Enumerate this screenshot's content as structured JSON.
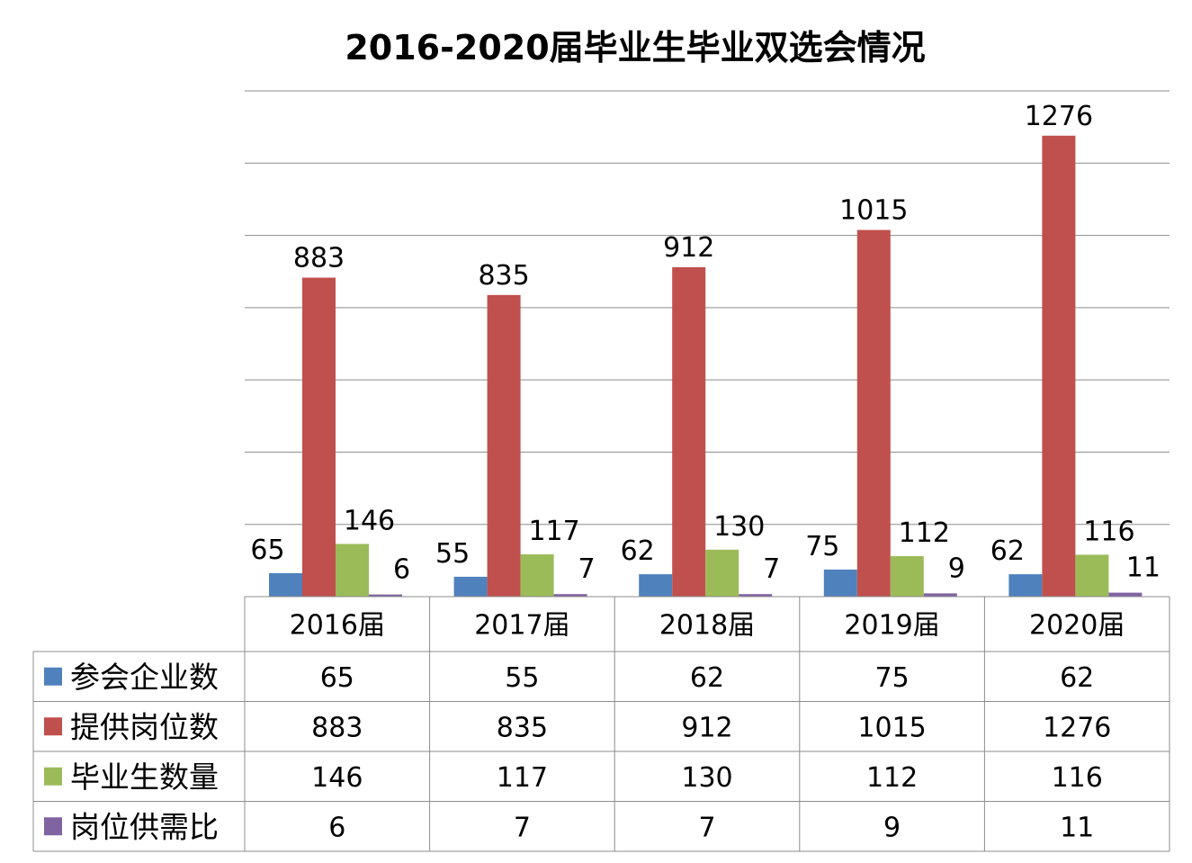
{
  "chart_data": {
    "type": "bar",
    "title": "2016-2020届毕业生毕业双选会情况",
    "categories": [
      "2016届",
      "2017届",
      "2018届",
      "2019届",
      "2020届"
    ],
    "series": [
      {
        "name": "参会企业数",
        "color": "#4F81BD",
        "values": [
          65,
          55,
          62,
          75,
          62
        ]
      },
      {
        "name": "提供岗位数",
        "color": "#C0504D",
        "values": [
          883,
          835,
          912,
          1015,
          1276
        ]
      },
      {
        "name": "毕业生数量",
        "color": "#9BBB59",
        "values": [
          146,
          117,
          130,
          112,
          116
        ]
      },
      {
        "name": "岗位供需比",
        "color": "#8064A2",
        "values": [
          6,
          7,
          7,
          9,
          11
        ]
      }
    ],
    "ylim": [
      0,
      1400
    ],
    "grid": true,
    "legend": "data-table-left"
  }
}
